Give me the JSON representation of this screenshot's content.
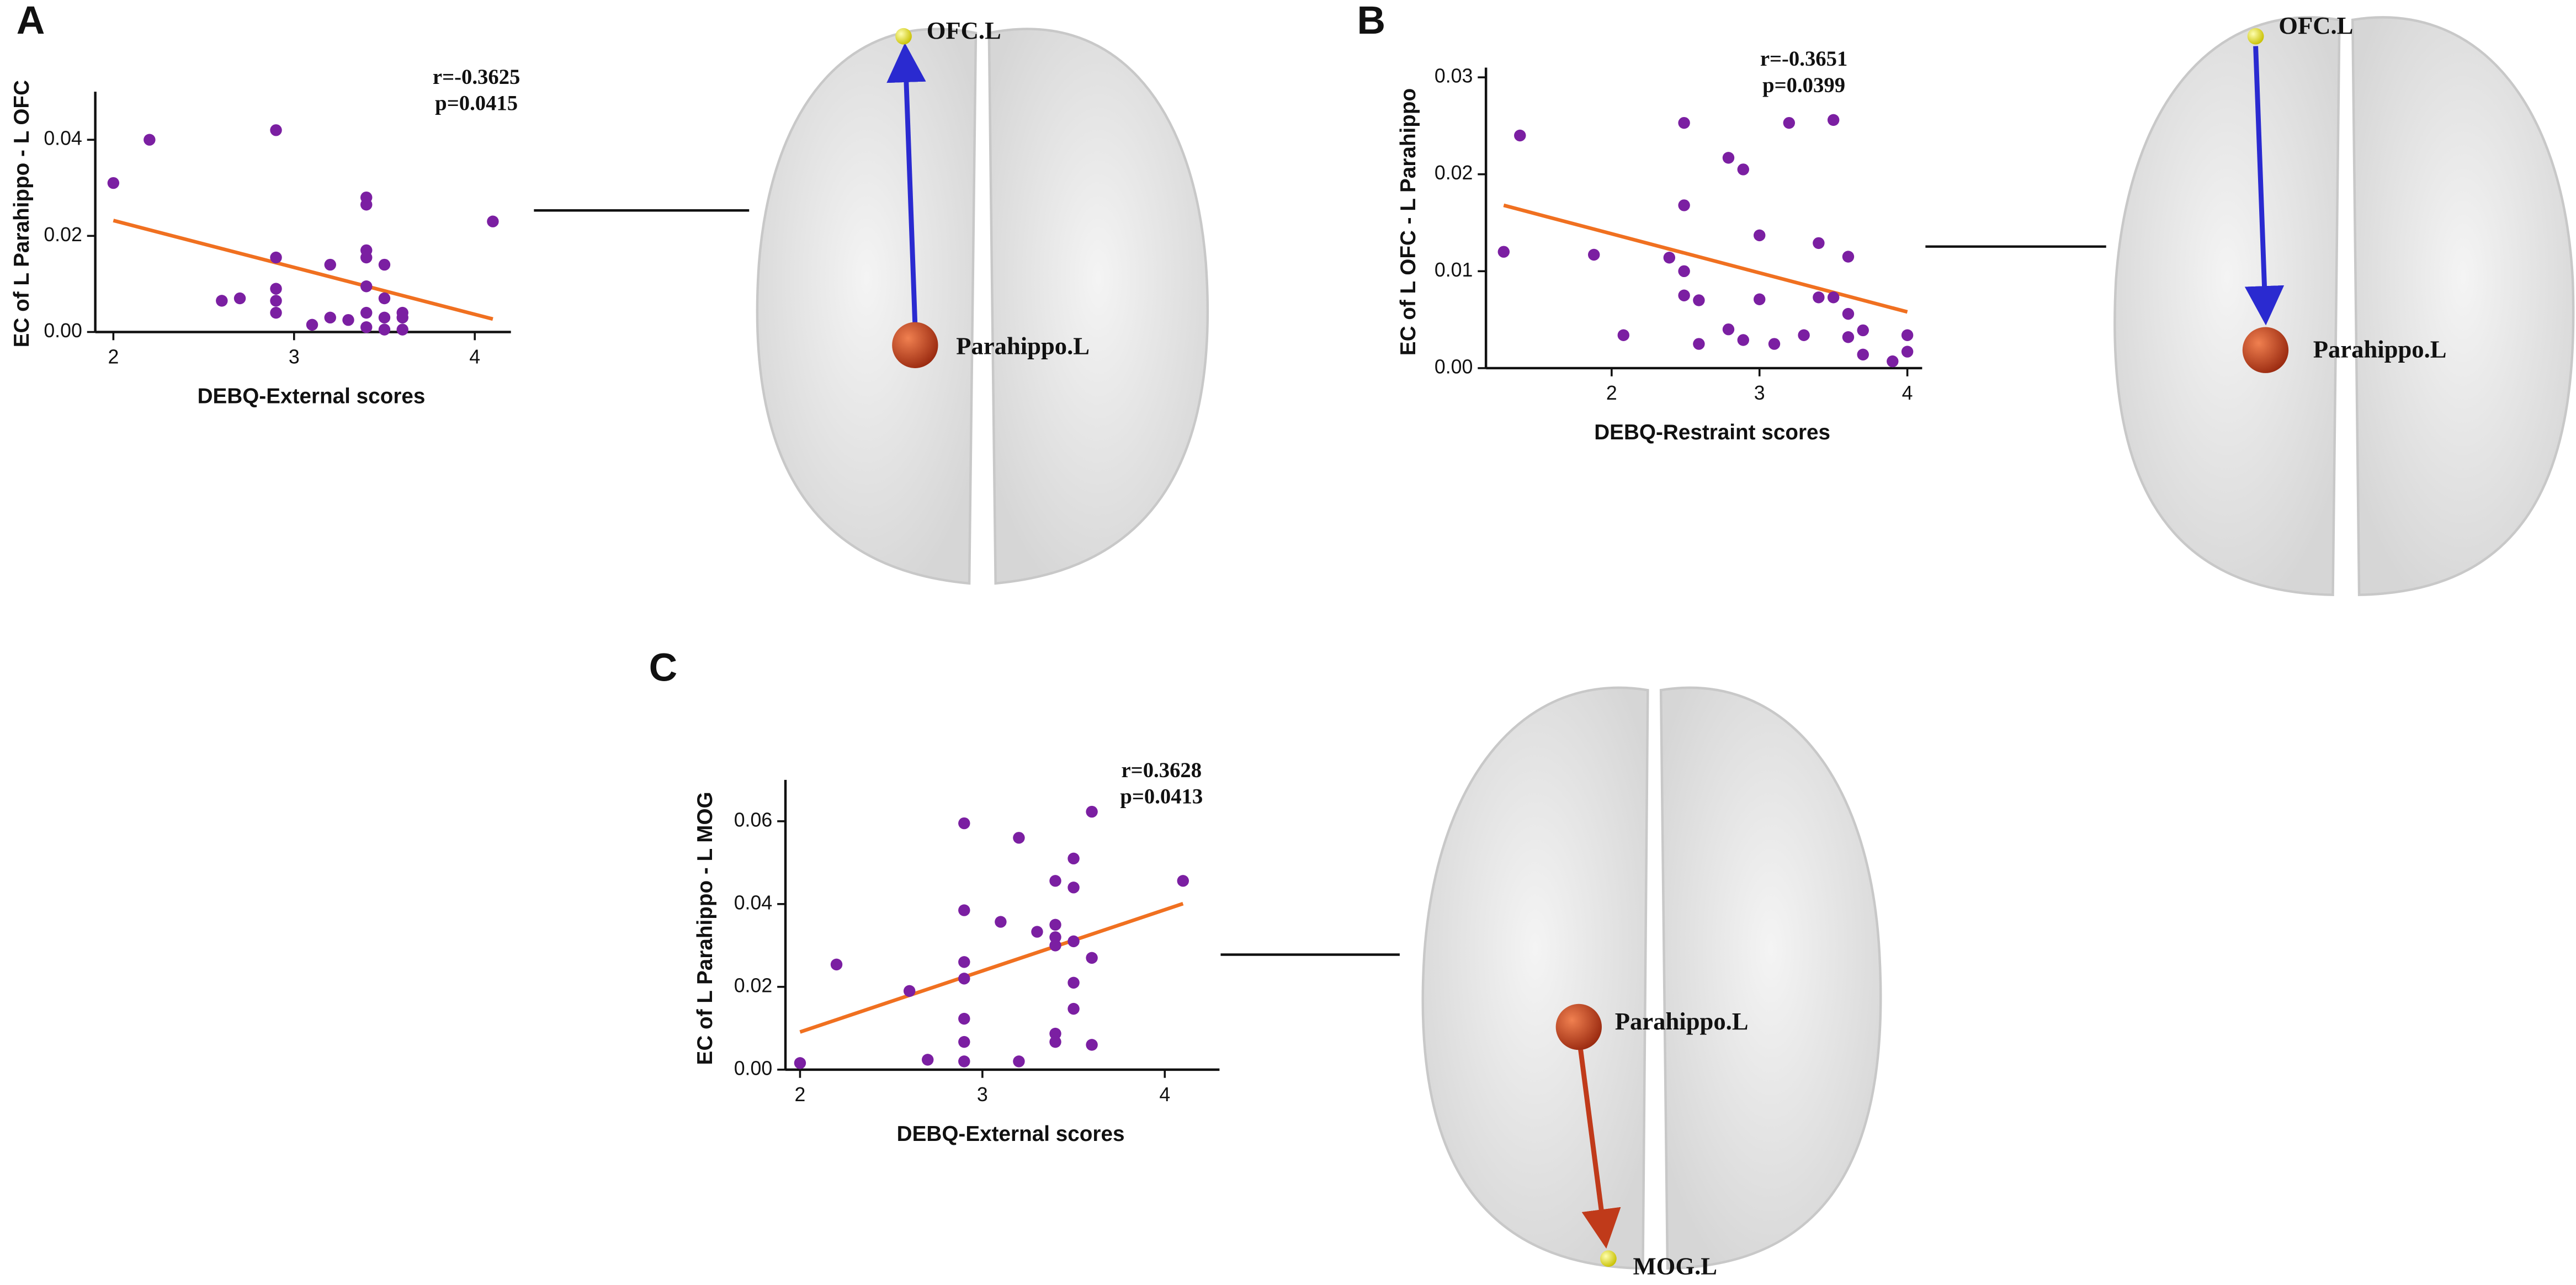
{
  "chart_data": [
    {
      "type": "scatter",
      "panel": "A",
      "xlabel": "DEBQ-External scores",
      "ylabel": "EC of L Parahippo - L OFC",
      "annotations": [
        "r=-0.3625",
        "p=0.0415"
      ],
      "color": "#7b1fa2",
      "x": [
        2.0,
        2.2,
        2.6,
        2.7,
        2.9,
        2.9,
        2.9,
        2.9,
        2.9,
        3.1,
        3.2,
        3.2,
        3.3,
        3.4,
        3.4,
        3.4,
        3.4,
        3.4,
        3.4,
        3.4,
        3.5,
        3.5,
        3.5,
        3.5,
        3.6,
        3.6,
        3.6,
        4.1
      ],
      "values": [
        0.031,
        0.04,
        0.0065,
        0.007,
        0.042,
        0.0155,
        0.009,
        0.0065,
        0.004,
        0.0015,
        0.014,
        0.003,
        0.0025,
        0.028,
        0.0265,
        0.017,
        0.0155,
        0.0095,
        0.004,
        0.001,
        0.014,
        0.007,
        0.003,
        0.0005,
        0.004,
        0.003,
        0.0005,
        0.023
      ],
      "fit": {
        "color": "#f07020",
        "x": [
          2.0,
          4.1
        ],
        "values": [
          0.0232,
          0.0027
        ]
      },
      "xlim": [
        1.9,
        4.2
      ],
      "xticks": [
        2,
        3,
        4
      ],
      "ylim": [
        0,
        0.05
      ],
      "yticks": [
        {
          "value": 0,
          "label": "0.00"
        },
        0.02,
        0.04
      ],
      "brain": {
        "nodes": [
          "OFC.L",
          "Parahippo.L"
        ]
      }
    },
    {
      "type": "scatter",
      "panel": "B",
      "xlabel": "DEBQ-Restraint scores",
      "ylabel": "EC of L OFC - L Parahippo",
      "annotations": [
        "r=-0.3651",
        "p=0.0399"
      ],
      "color": "#7b1fa2",
      "x": [
        1.27,
        1.38,
        1.88,
        2.08,
        2.39,
        2.49,
        2.49,
        2.49,
        2.49,
        2.59,
        2.59,
        2.79,
        2.79,
        2.89,
        2.89,
        3.0,
        3.0,
        3.1,
        3.2,
        3.3,
        3.4,
        3.4,
        3.5,
        3.5,
        3.6,
        3.6,
        3.6,
        3.7,
        3.7,
        3.9,
        4.0,
        4.0
      ],
      "values": [
        0.012,
        0.024,
        0.0117,
        0.0034,
        0.0114,
        0.0253,
        0.0168,
        0.01,
        0.0075,
        0.007,
        0.0025,
        0.0217,
        0.004,
        0.0205,
        0.0029,
        0.0137,
        0.0071,
        0.0025,
        0.0253,
        0.0034,
        0.0129,
        0.0073,
        0.0256,
        0.0073,
        0.0115,
        0.0056,
        0.0032,
        0.0039,
        0.0014,
        0.0007,
        0.0034,
        0.0017
      ],
      "fit": {
        "color": "#f07020",
        "x": [
          1.27,
          4.0
        ],
        "values": [
          0.0168,
          0.0058
        ]
      },
      "xlim": [
        1.15,
        4.1
      ],
      "xticks": [
        2,
        3,
        4
      ],
      "ylim": [
        0,
        0.031
      ],
      "yticks": [
        {
          "value": 0,
          "label": "0.00"
        },
        0.01,
        0.02,
        0.03
      ],
      "brain": {
        "nodes": [
          "OFC.L",
          "Parahippo.L"
        ]
      }
    },
    {
      "type": "scatter",
      "panel": "C",
      "xlabel": "DEBQ-External scores",
      "ylabel": "EC of L Parahippo - L MOG",
      "annotations": [
        "r=0.3628",
        "p=0.0413"
      ],
      "color": "#7b1fa2",
      "x": [
        2.0,
        2.2,
        2.6,
        2.7,
        2.9,
        2.9,
        2.9,
        2.9,
        2.9,
        2.9,
        2.9,
        3.1,
        3.2,
        3.2,
        3.3,
        3.4,
        3.4,
        3.4,
        3.4,
        3.4,
        3.4,
        3.5,
        3.5,
        3.5,
        3.5,
        3.5,
        3.6,
        3.6,
        3.6,
        4.1
      ],
      "values": [
        0.0016,
        0.0254,
        0.019,
        0.0024,
        0.0595,
        0.0385,
        0.026,
        0.022,
        0.0123,
        0.0067,
        0.002,
        0.0357,
        0.056,
        0.002,
        0.0333,
        0.0456,
        0.035,
        0.032,
        0.03,
        0.0087,
        0.0067,
        0.051,
        0.044,
        0.031,
        0.021,
        0.0147,
        0.0623,
        0.027,
        0.006,
        0.0456
      ],
      "fit": {
        "color": "#f07020",
        "x": [
          2.0,
          4.1
        ],
        "values": [
          0.0091,
          0.0401
        ]
      },
      "xlim": [
        1.92,
        4.3
      ],
      "xticks": [
        2,
        3,
        4
      ],
      "ylim": [
        0,
        0.07
      ],
      "yticks": [
        {
          "value": 0,
          "label": "0.00"
        },
        0.02,
        0.04,
        0.06
      ],
      "brain": {
        "nodes": [
          "Parahippo.L",
          "MOG.L"
        ]
      }
    }
  ]
}
